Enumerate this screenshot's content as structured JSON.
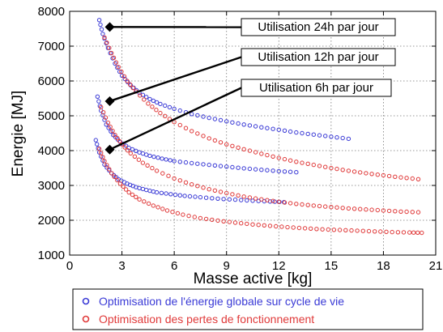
{
  "chart_data": {
    "type": "scatter",
    "xlabel": "Masse active [kg]",
    "ylabel": "Energie [MJ]",
    "xlim": [
      0,
      21
    ],
    "ylim": [
      1000,
      8000
    ],
    "xticks": [
      0,
      3,
      6,
      9,
      12,
      15,
      18,
      21
    ],
    "yticks": [
      1000,
      2000,
      3000,
      4000,
      5000,
      6000,
      7000,
      8000
    ],
    "grid": "dotted",
    "legend_position": "bottom",
    "colors": {
      "blue": "#3a3ad6",
      "red": "#e03a3a"
    },
    "series": [
      {
        "name": "Optimisation de l'énergie globale sur cycle de vie",
        "color": "#3a3ad6",
        "groups": [
          {
            "usage": "24h",
            "x": [
              1.7,
              1.9,
              2.2,
              2.6,
              3.0,
              3.5,
              4.0,
              4.6,
              5.2,
              6.0,
              7.0,
              8.0,
              9.0,
              10.0,
              11.0,
              12.0,
              13.0,
              14.0,
              15.0,
              16.0
            ],
            "y": [
              7750,
              7350,
              6950,
              6500,
              6150,
              5880,
              5660,
              5480,
              5340,
              5200,
              5050,
              4940,
              4840,
              4750,
              4670,
              4600,
              4520,
              4460,
              4400,
              4340
            ]
          },
          {
            "usage": "12h",
            "x": [
              1.6,
              1.8,
              2.1,
              2.5,
              2.9,
              3.4,
              4.0,
              4.6,
              5.3,
              6.0,
              7.0,
              8.0,
              9.0,
              10.0,
              11.0,
              12.0,
              13.0
            ],
            "y": [
              5550,
              5150,
              4750,
              4450,
              4250,
              4080,
              3950,
              3850,
              3770,
              3700,
              3640,
              3590,
              3540,
              3490,
              3450,
              3410,
              3380
            ]
          },
          {
            "usage": "6h",
            "x": [
              1.5,
              1.7,
              2.0,
              2.4,
              2.8,
              3.3,
              3.8,
              4.4,
              5.0,
              5.8,
              6.6,
              7.5,
              8.5,
              9.5,
              10.5,
              11.5,
              12.3
            ],
            "y": [
              4300,
              3950,
              3600,
              3350,
              3180,
              3050,
              2950,
              2870,
              2800,
              2750,
              2700,
              2660,
              2620,
              2590,
              2560,
              2540,
              2520
            ]
          }
        ]
      },
      {
        "name": "Optimisation des pertes de fonctionnement",
        "color": "#e03a3a",
        "groups": [
          {
            "usage": "24h",
            "x": [
              2.0,
              2.4,
              2.8,
              3.3,
              3.8,
              4.5,
              5.2,
              6.0,
              7.0,
              8.0,
              9.0,
              10.0,
              11.0,
              12.0,
              13.0,
              14.0,
              15.0,
              16.0,
              17.0,
              18.0,
              19.0,
              20.0
            ],
            "y": [
              7250,
              6800,
              6400,
              6000,
              5700,
              5350,
              5080,
              4820,
              4560,
              4350,
              4180,
              4040,
              3910,
              3790,
              3680,
              3590,
              3500,
              3420,
              3350,
              3290,
              3230,
              3180
            ]
          },
          {
            "usage": "12h",
            "x": [
              1.8,
              2.2,
              2.6,
              3.0,
              3.5,
              4.2,
              5.0,
              6.0,
              7.0,
              8.0,
              9.0,
              10.0,
              11.0,
              12.0,
              13.0,
              14.0,
              15.0,
              16.0,
              17.0,
              18.0,
              19.0,
              20.0
            ],
            "y": [
              5250,
              4800,
              4450,
              4180,
              3920,
              3650,
              3420,
              3200,
              3030,
              2890,
              2780,
              2680,
              2600,
              2530,
              2470,
              2420,
              2380,
              2340,
              2310,
              2280,
              2250,
              2230
            ]
          },
          {
            "usage": "6h",
            "x": [
              1.7,
              2.0,
              2.4,
              2.9,
              3.4,
              4.0,
              4.8,
              5.6,
              6.5,
              7.5,
              8.5,
              9.5,
              10.5,
              11.5,
              12.5,
              13.5,
              14.5,
              15.5,
              16.5,
              17.5,
              18.5,
              19.5,
              20.2
            ],
            "y": [
              4050,
              3700,
              3350,
              3050,
              2800,
              2600,
              2420,
              2280,
              2160,
              2060,
              1990,
              1930,
              1880,
              1840,
              1800,
              1770,
              1740,
              1720,
              1700,
              1680,
              1660,
              1650,
              1640
            ]
          }
        ]
      }
    ],
    "annotations": [
      {
        "text": "Utilisation 24h par jour",
        "x": 2.3,
        "y": 7550
      },
      {
        "text": "Utilisation 12h par jour",
        "x": 2.3,
        "y": 5420
      },
      {
        "text": "Utilisation 6h par jour",
        "x": 2.3,
        "y": 4030
      }
    ]
  }
}
